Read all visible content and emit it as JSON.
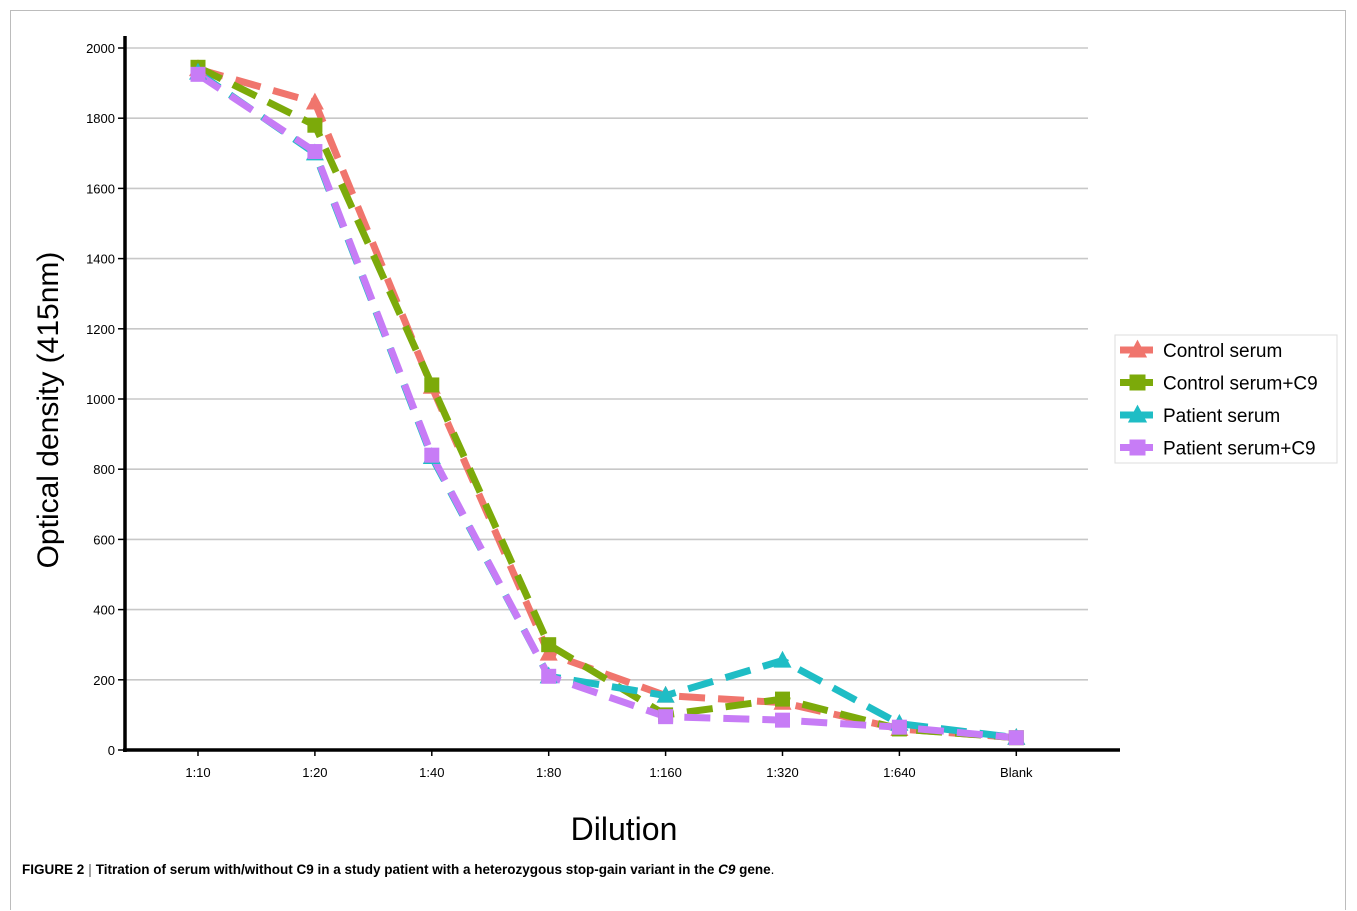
{
  "caption": {
    "figure_label": "FIGURE 2",
    "separator": "|",
    "text_before": "Titration of serum with/without C9 in a study patient with a heterozygous stop-gain variant in the ",
    "gene": "C9",
    "text_after": " gene",
    "end": "."
  },
  "colors": {
    "Control serum": "#f0756d",
    "Control serum+C9": "#7caa0a",
    "Patient serum": "#1fbdc5",
    "Patient serum+C9": "#c77cf6",
    "gridline": "#c8c8c8"
  },
  "chart_data": {
    "type": "line",
    "line_style": "dashed",
    "title": "",
    "xlabel": "Dilution",
    "ylabel": "Optical density (415nm)",
    "categories": [
      "1:10",
      "1:20",
      "1:40",
      "1:80",
      "1:160",
      "1:320",
      "1:640",
      "Blank"
    ],
    "ylim": [
      0,
      2000
    ],
    "yticks": [
      0,
      200,
      400,
      600,
      800,
      1000,
      1200,
      1400,
      1600,
      1800,
      2000
    ],
    "grid": "horizontal",
    "legend_position": "right",
    "series": [
      {
        "name": "Control serum",
        "marker": "triangle",
        "values": [
          1940,
          1845,
          1035,
          275,
          155,
          135,
          60,
          35
        ]
      },
      {
        "name": "Control serum+C9",
        "marker": "square",
        "values": [
          1945,
          1780,
          1040,
          300,
          100,
          145,
          60,
          35
        ]
      },
      {
        "name": "Patient serum",
        "marker": "triangle",
        "values": [
          1930,
          1700,
          835,
          210,
          155,
          255,
          75,
          35
        ]
      },
      {
        "name": "Patient serum+C9",
        "marker": "square",
        "values": [
          1925,
          1705,
          840,
          210,
          95,
          85,
          65,
          35
        ]
      }
    ]
  }
}
